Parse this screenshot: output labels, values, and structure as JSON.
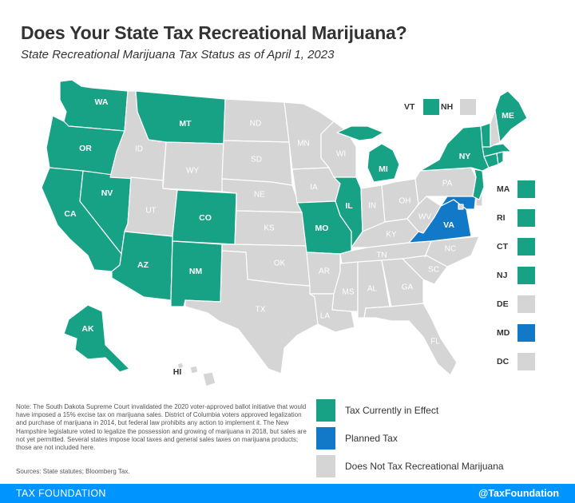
{
  "title": "Does Your State Tax Recreational Marijuana?",
  "subtitle": "State Recreational Marijuana Tax Status as of April 1, 2023",
  "colors": {
    "tax": "#17a286",
    "planned": "#1278c8",
    "none": "#d5d5d5"
  },
  "states": {
    "WA": "tax",
    "OR": "tax",
    "CA": "tax",
    "NV": "tax",
    "ID": "none",
    "MT": "tax",
    "WY": "none",
    "UT": "none",
    "CO": "tax",
    "AZ": "tax",
    "NM": "tax",
    "ND": "none",
    "SD": "none",
    "NE": "none",
    "KS": "none",
    "OK": "none",
    "TX": "none",
    "MN": "none",
    "IA": "none",
    "MO": "tax",
    "AR": "none",
    "LA": "none",
    "WI": "none",
    "IL": "tax",
    "MI": "tax",
    "IN": "none",
    "OH": "none",
    "KY": "none",
    "TN": "none",
    "MS": "none",
    "AL": "none",
    "GA": "none",
    "FL": "none",
    "SC": "none",
    "NC": "none",
    "VA": "planned",
    "WV": "none",
    "PA": "none",
    "NY": "tax",
    "VT": "tax",
    "NH": "none",
    "ME": "tax",
    "MA": "tax",
    "RI": "tax",
    "CT": "tax",
    "NJ": "tax",
    "DE": "none",
    "MD": "planned",
    "DC": "none",
    "AK": "tax",
    "HI": "none"
  },
  "small_states": [
    {
      "label": "MA",
      "status": "tax"
    },
    {
      "label": "RI",
      "status": "tax"
    },
    {
      "label": "CT",
      "status": "tax"
    },
    {
      "label": "NJ",
      "status": "tax"
    },
    {
      "label": "DE",
      "status": "none"
    },
    {
      "label": "MD",
      "status": "planned"
    },
    {
      "label": "DC",
      "status": "none"
    }
  ],
  "vt_label": "VT",
  "nh_label": "NH",
  "legend": [
    {
      "label": "Tax Currently in Effect",
      "status": "tax"
    },
    {
      "label": "Planned Tax",
      "status": "planned"
    },
    {
      "label": "Does Not Tax Recreational Marijuana",
      "status": "none"
    }
  ],
  "note": "Note: The South Dakota Supreme Court invalidated the 2020 voter-approved ballot initiative that would have imposed a 15% excise tax on marijuana sales. District of Columbia voters approved legalization and purchase of marijuana in 2014, but federal law prohibits any action to implement it. The New Hampshire legislature voted to legalize the possession and growing of marijuana in 2018, but sales are not yet permitted. Several states impose local taxes and general sales taxes on marijuana products; those are not included here.",
  "sources": "Sources: State statutes; Bloomberg Tax.",
  "footer": {
    "brand": "TAX FOUNDATION",
    "handle": "@TaxFoundation"
  }
}
